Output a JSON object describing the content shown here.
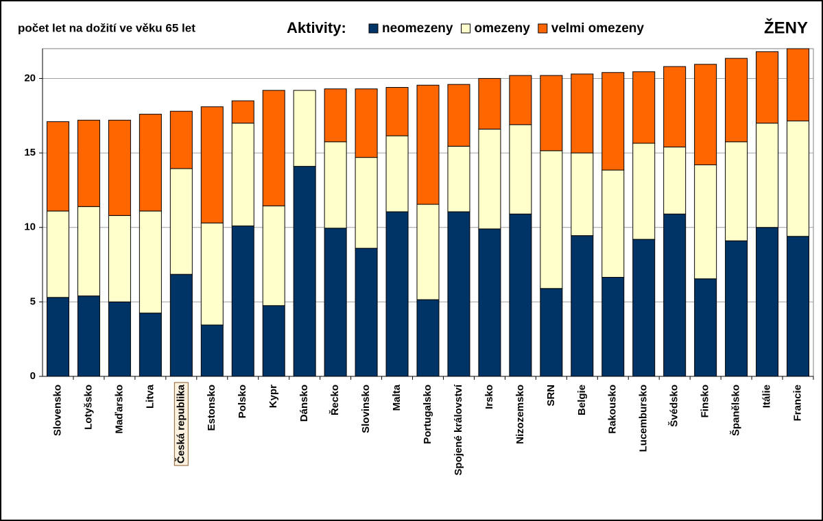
{
  "chart_data": {
    "type": "stacked_bar",
    "title": "počet let na dožití ve věku 65 let",
    "legend_title": "Aktivity:",
    "annotation": "ŽENY",
    "highlight": "Česká republika",
    "categories": [
      "Slovensko",
      "Lotyšsko",
      "Maďarsko",
      "Litva",
      "Česká republika",
      "Estonsko",
      "Polsko",
      "Kypr",
      "Dánsko",
      "Řecko",
      "Slovinsko",
      "Malta",
      "Portugalsko",
      "Spojené království",
      "Irsko",
      "Nizozemsko",
      "SRN",
      "Belgie",
      "Rakousko",
      "Lucembursko",
      "Švédsko",
      "Finsko",
      "Španělsko",
      "Itálie",
      "Francie"
    ],
    "series": [
      {
        "name": "neomezeny",
        "color": "#003366",
        "values": [
          5.3,
          5.4,
          5.0,
          4.25,
          6.85,
          3.45,
          10.1,
          4.75,
          14.1,
          9.95,
          8.6,
          11.05,
          5.15,
          11.05,
          9.9,
          10.9,
          5.9,
          9.45,
          6.65,
          9.2,
          10.9,
          6.55,
          9.1,
          10.0,
          9.4
        ]
      },
      {
        "name": "omezeny",
        "color": "#ffffcc",
        "values": [
          5.8,
          6.0,
          5.8,
          6.85,
          7.1,
          6.85,
          6.9,
          6.7,
          5.1,
          5.8,
          6.1,
          5.1,
          6.4,
          4.4,
          6.7,
          6.0,
          9.25,
          5.55,
          7.2,
          6.45,
          4.5,
          7.65,
          6.65,
          7.0,
          7.75
        ]
      },
      {
        "name": "velmi omezeny",
        "color": "#ff6600",
        "values": [
          6.0,
          5.8,
          6.4,
          6.5,
          3.85,
          7.8,
          1.5,
          7.75,
          0,
          3.55,
          4.6,
          3.25,
          8.0,
          4.15,
          3.4,
          3.3,
          5.05,
          5.3,
          6.55,
          4.8,
          5.4,
          6.75,
          5.6,
          4.8,
          4.85
        ]
      }
    ],
    "ylim": [
      0,
      22
    ],
    "yticks": [
      0,
      5,
      10,
      15,
      20
    ],
    "grid": true
  }
}
